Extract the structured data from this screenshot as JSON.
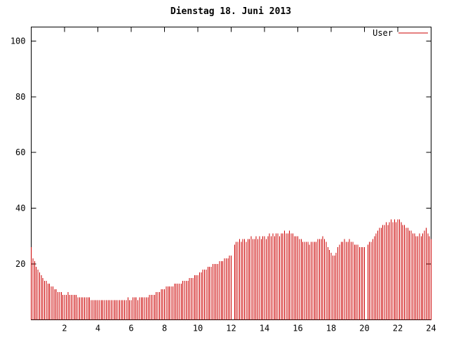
{
  "window": {
    "background": "#ffffff",
    "text_color": "#000000",
    "axis_color": "#000000"
  },
  "chart_data": {
    "type": "bar",
    "bar_style": "impulses",
    "title": "Dienstag 18. Juni 2013",
    "xlabel": "",
    "ylabel": "",
    "xlim": [
      0,
      24
    ],
    "ylim": [
      0,
      105
    ],
    "xticks": [
      2,
      4,
      6,
      8,
      10,
      12,
      14,
      16,
      18,
      20,
      22,
      24
    ],
    "yticks": [
      20,
      40,
      60,
      80,
      100
    ],
    "grid": false,
    "legend_position": "top-right-inside",
    "x_unit": "hour",
    "x_start": 0,
    "x_step": 0.1,
    "series": [
      {
        "name": "User",
        "color": "#cc0000",
        "values": [
          26,
          22,
          21,
          19,
          18,
          17,
          16,
          15,
          14,
          14,
          13,
          13,
          12,
          12,
          11,
          11,
          10,
          10,
          10,
          9,
          9,
          9,
          10,
          9,
          9,
          9,
          9,
          9,
          8,
          8,
          8,
          8,
          8,
          8,
          8,
          8,
          7,
          7,
          7,
          7,
          7,
          7,
          7,
          7,
          7,
          7,
          7,
          7,
          7,
          7,
          7,
          7,
          7,
          7,
          7,
          7,
          7,
          7,
          8,
          7,
          7,
          8,
          8,
          8,
          7,
          8,
          8,
          8,
          8,
          8,
          8,
          9,
          9,
          9,
          9,
          10,
          10,
          10,
          11,
          11,
          11,
          12,
          12,
          12,
          12,
          12,
          13,
          13,
          13,
          13,
          13,
          14,
          14,
          14,
          14,
          15,
          15,
          15,
          16,
          16,
          16,
          17,
          17,
          18,
          18,
          18,
          19,
          19,
          19,
          20,
          20,
          20,
          20,
          21,
          21,
          21,
          22,
          22,
          22,
          23,
          23,
          null,
          27,
          28,
          28,
          29,
          28,
          29,
          29,
          28,
          29,
          29,
          30,
          29,
          29,
          30,
          29,
          30,
          29,
          30,
          30,
          29,
          30,
          31,
          30,
          31,
          30,
          31,
          31,
          30,
          31,
          31,
          32,
          31,
          31,
          32,
          31,
          31,
          30,
          30,
          30,
          29,
          29,
          28,
          28,
          28,
          28,
          27,
          28,
          28,
          28,
          28,
          29,
          29,
          29,
          30,
          29,
          28,
          26,
          25,
          24,
          23,
          23,
          24,
          26,
          27,
          28,
          28,
          29,
          28,
          28,
          29,
          28,
          28,
          27,
          27,
          27,
          26,
          26,
          26,
          26,
          null,
          27,
          28,
          28,
          29,
          30,
          31,
          32,
          33,
          33,
          34,
          34,
          35,
          34,
          35,
          36,
          35,
          36,
          35,
          36,
          36,
          35,
          34,
          34,
          33,
          33,
          32,
          32,
          31,
          31,
          30,
          30,
          31,
          30,
          31,
          32,
          33,
          31,
          30,
          29
        ]
      }
    ]
  }
}
